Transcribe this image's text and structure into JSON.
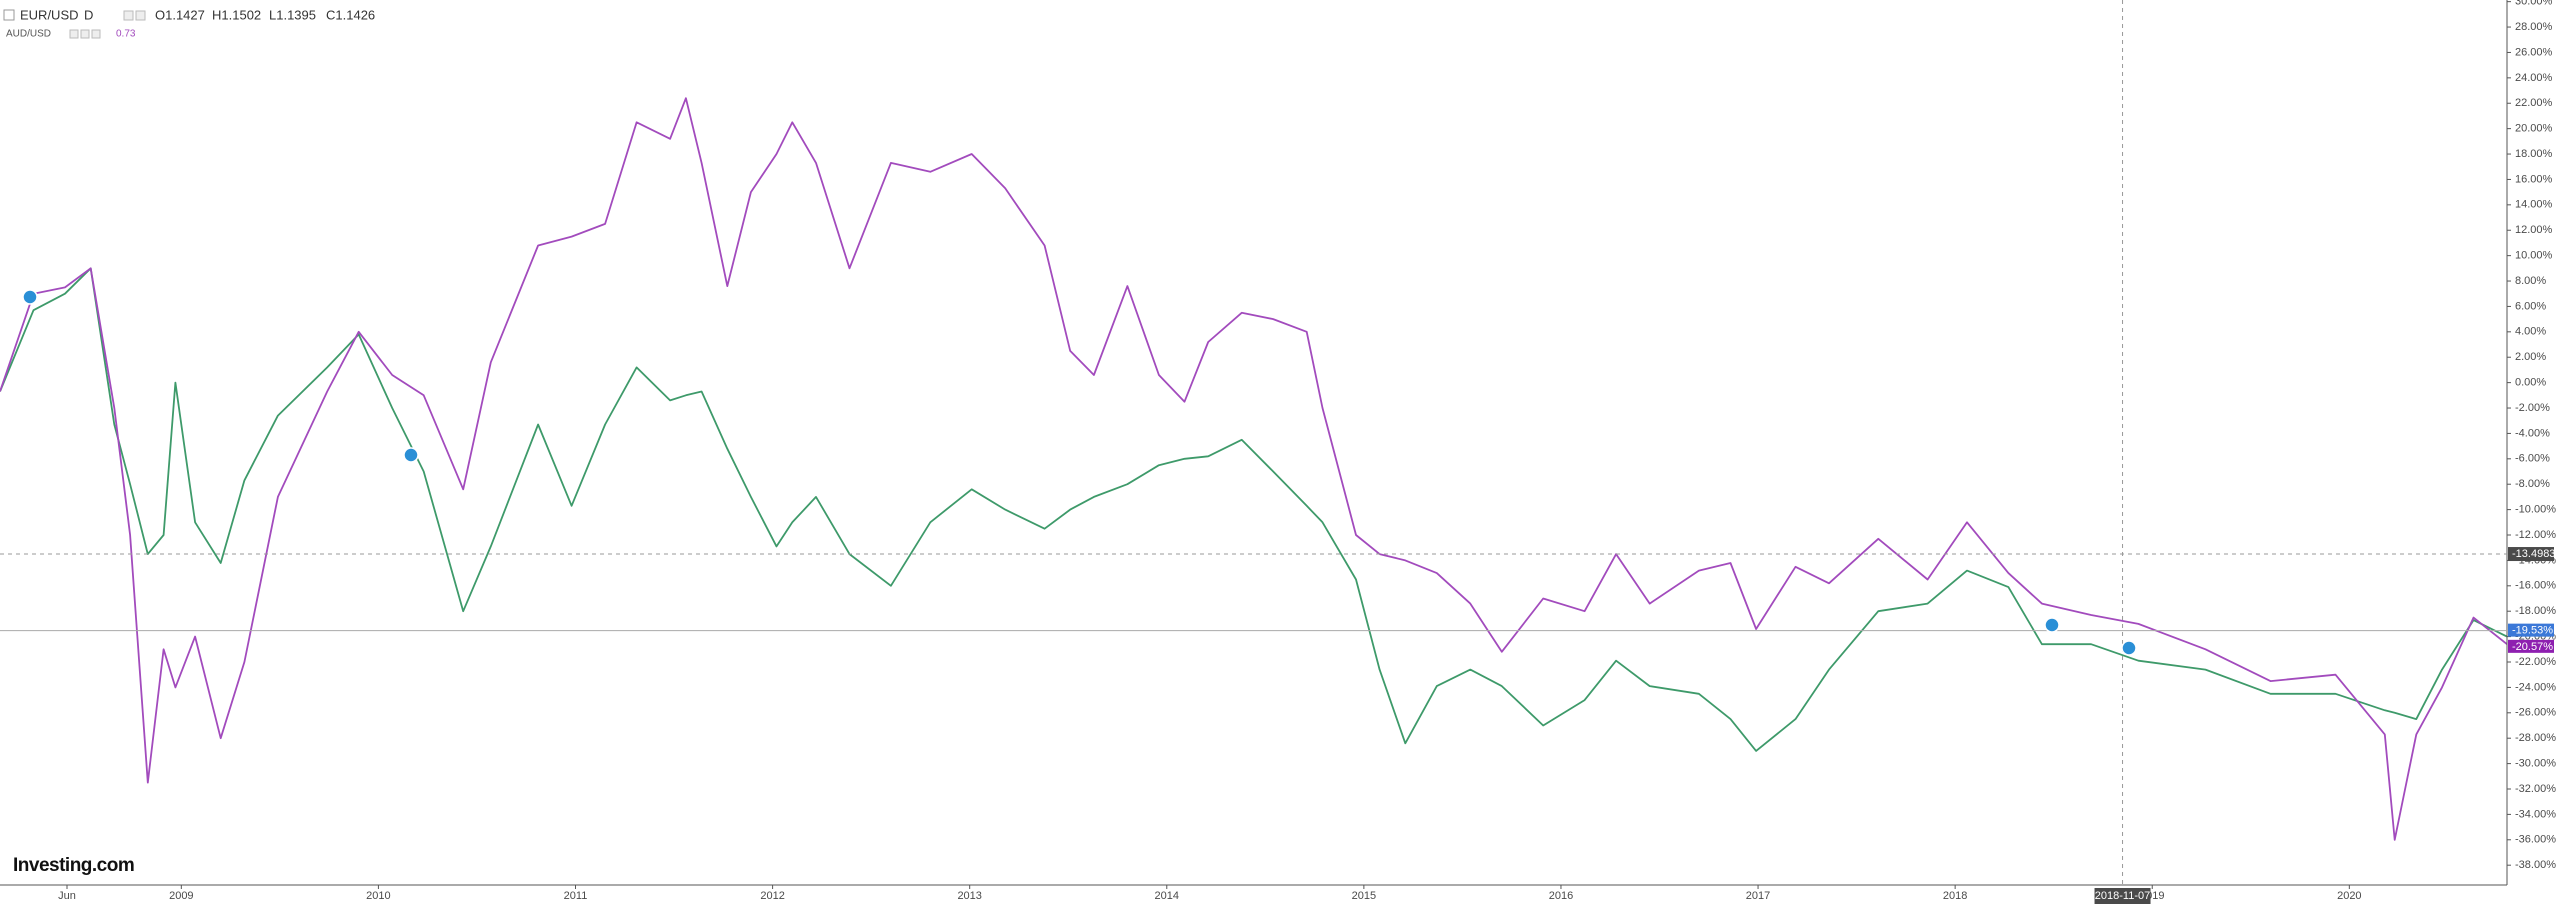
{
  "chart_data": {
    "type": "line",
    "header": {
      "interval": "D",
      "ohlc": [
        "O1.1427",
        "H1.1502",
        "L1.1395",
        "C1.1426"
      ],
      "second_value": "0.73"
    },
    "logo": "Investing.com",
    "x": [
      2008.08,
      2008.25,
      2008.41,
      2008.54,
      2008.66,
      2008.74,
      2008.83,
      2008.91,
      2008.97,
      2009.07,
      2009.2,
      2009.32,
      2009.49,
      2009.74,
      2009.9,
      2010.07,
      2010.23,
      2010.43,
      2010.57,
      2010.81,
      2010.98,
      2011.15,
      2011.31,
      2011.48,
      2011.56,
      2011.64,
      2011.77,
      2011.89,
      2012.02,
      2012.1,
      2012.22,
      2012.39,
      2012.6,
      2012.8,
      2013.01,
      2013.18,
      2013.38,
      2013.51,
      2013.63,
      2013.8,
      2013.96,
      2014.09,
      2014.21,
      2014.38,
      2014.54,
      2014.71,
      2014.79,
      2014.96,
      2015.08,
      2015.21,
      2015.37,
      2015.54,
      2015.7,
      2015.91,
      2016.12,
      2016.28,
      2016.45,
      2016.7,
      2016.86,
      2016.99,
      2017.19,
      2017.36,
      2017.61,
      2017.86,
      2018.06,
      2018.27,
      2018.44,
      2018.69,
      2018.93,
      2019.27,
      2019.6,
      2019.93,
      2020.18,
      2020.23,
      2020.34,
      2020.47,
      2020.63,
      2020.8
    ],
    "series": [
      {
        "name": "EUR/USD",
        "color": "#3e9a6a",
        "values": [
          -0.7,
          5.7,
          7,
          9,
          -3.3,
          -8,
          -13.5,
          -12,
          0,
          -11,
          -14.2,
          -7.7,
          -2.6,
          1.2,
          3.8,
          -2,
          -7,
          -18,
          -12.9,
          -3.3,
          -9.7,
          -3.3,
          1.2,
          -1.4,
          -1,
          -0.7,
          -5.2,
          -9,
          -12.9,
          -11,
          -9,
          -13.5,
          -16,
          -11,
          -8.4,
          -10,
          -11.5,
          -10,
          -9,
          -8,
          -6.5,
          -6,
          -5.8,
          -4.5,
          -7,
          -9.7,
          -11,
          -15.5,
          -22.6,
          -28.4,
          -23.9,
          -22.6,
          -23.9,
          -27,
          -25,
          -21.9,
          -23.9,
          -24.5,
          -26.5,
          -29,
          -26.5,
          -22.6,
          -18,
          -17.4,
          -14.8,
          -16.1,
          -20.6,
          -20.6,
          -21.9,
          -22.6,
          -24.5,
          -24.5,
          -25.8,
          -26,
          -26.5,
          -22.6,
          -18.7,
          -20
        ]
      },
      {
        "name": "AUD/USD",
        "color": "#a24bbd",
        "values": [
          -0.7,
          7,
          7.5,
          9,
          -2,
          -12,
          -31.5,
          -21,
          -24,
          -20,
          -28,
          -22,
          -9,
          -0.7,
          4,
          0.6,
          -1,
          -8.4,
          1.6,
          10.8,
          11.5,
          12.5,
          20.5,
          19.2,
          22.4,
          17.3,
          7.6,
          15,
          18,
          20.5,
          17.3,
          9,
          17.3,
          16.6,
          18,
          15.3,
          10.8,
          2.5,
          0.6,
          7.6,
          0.6,
          -1.5,
          3.2,
          5.5,
          5,
          4,
          -2,
          -12,
          -13.5,
          -14,
          -15,
          -17.4,
          -21.2,
          -17,
          -18,
          -13.5,
          -17.4,
          -14.8,
          -14.2,
          -19.4,
          -14.5,
          -15.8,
          -12.3,
          -15.5,
          -11,
          -15,
          -17.4,
          -18.3,
          -19,
          -21,
          -23.5,
          -23,
          -27.7,
          -36,
          -27.7,
          -24,
          -18.5,
          -20.6
        ]
      }
    ],
    "xlim": [
      2008.08,
      2020.8
    ],
    "xticks": [
      {
        "value": 2008.42,
        "label": "Jun"
      },
      2009,
      2010,
      2011,
      2012,
      2013,
      2014,
      2015,
      2016,
      2017,
      2018,
      2019,
      2020
    ],
    "ylim": [
      -39.56,
      30.13
    ],
    "yticks": [
      {
        "value": 30,
        "label": "30.00%"
      },
      {
        "value": 28,
        "label": "28.00%"
      },
      {
        "value": 26,
        "label": "26.00%"
      },
      {
        "value": 24,
        "label": "24.00%"
      },
      {
        "value": 22,
        "label": "22.00%"
      },
      {
        "value": 20,
        "label": "20.00%"
      },
      {
        "value": 18,
        "label": "18.00%"
      },
      {
        "value": 16,
        "label": "16.00%"
      },
      {
        "value": 14,
        "label": "14.00%"
      },
      {
        "value": 12,
        "label": "12.00%"
      },
      {
        "value": 10,
        "label": "10.00%"
      },
      {
        "value": 8,
        "label": "8.00%"
      },
      {
        "value": 6,
        "label": "6.00%"
      },
      {
        "value": 4,
        "label": "4.00%"
      },
      {
        "value": 2,
        "label": "2.00%"
      },
      {
        "value": 0,
        "label": "0.00%"
      },
      {
        "value": -2,
        "label": "-2.00%"
      },
      {
        "value": -4,
        "label": "-4.00%"
      },
      {
        "value": -6,
        "label": "-6.00%"
      },
      {
        "value": -8,
        "label": "-8.00%"
      },
      {
        "value": -10,
        "label": "-10.00%"
      },
      {
        "value": -12,
        "label": "-12.00%"
      },
      {
        "value": -14,
        "label": "-14.00%"
      },
      {
        "value": -16,
        "label": "-16.00%"
      },
      {
        "value": -18,
        "label": "-18.00%"
      },
      {
        "value": -20,
        "label": "-20.00%"
      },
      {
        "value": -22,
        "label": "-22.00%"
      },
      {
        "value": -24,
        "label": "-24.00%"
      },
      {
        "value": -26,
        "label": "-26.00%"
      },
      {
        "value": -28,
        "label": "-28.00%"
      },
      {
        "value": -30,
        "label": "-30.00%"
      },
      {
        "value": -32,
        "label": "-32.00%"
      },
      {
        "value": -34,
        "label": "-34.00%"
      },
      {
        "value": -36,
        "label": "-36.00%"
      },
      {
        "value": -38,
        "label": "-38.00%"
      }
    ],
    "last_labels": [
      {
        "value": -19.53,
        "label": "-19.53%",
        "color": "#3b78d8"
      },
      {
        "value": -20.57,
        "label": "-20.57%",
        "color": "#8e1fb0"
      }
    ],
    "crosshair": {
      "x_label": "2018-11-07",
      "y_value": -13.4983,
      "y_label": "-13.4983"
    },
    "grid": false
  }
}
